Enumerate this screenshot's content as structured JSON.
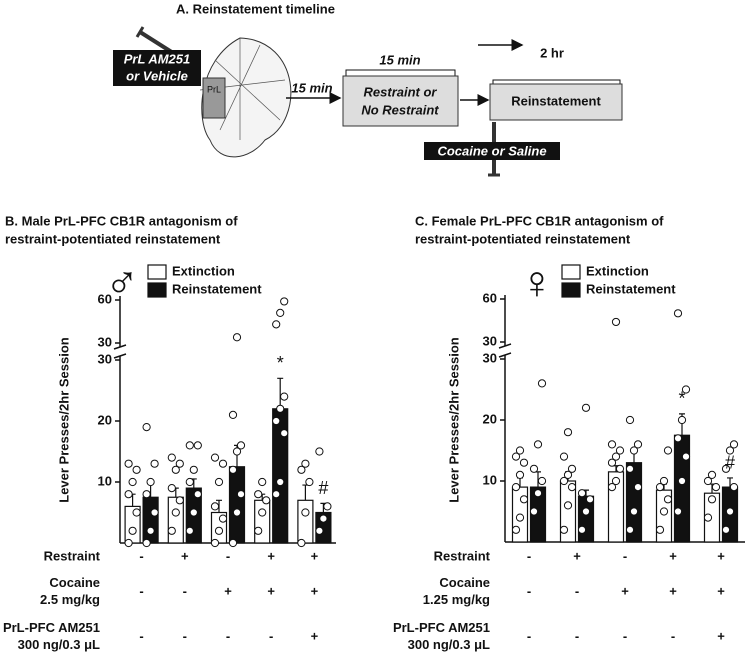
{
  "panel_a": {
    "title": "A. Reinstatement timeline",
    "drug_label": [
      "PrL AM251",
      "or Vehicle"
    ],
    "region": "PrL",
    "interval1": "15 min",
    "interval2": "15 min",
    "interval3": "2 hr",
    "stress_box": [
      "Restraint or",
      "No Restraint"
    ],
    "test_box": "Reinstatement",
    "injection": "Cocaine or Saline"
  },
  "chart_data": [
    {
      "type": "bar",
      "title": [
        "B. Male PrL-PFC CB1R antagonism of",
        "restraint-potentiated reinstatement"
      ],
      "symbol": "♂",
      "y_label": "Lever Presses/2hr Session",
      "ylim_lower": [
        0,
        30
      ],
      "ylim_upper": [
        30,
        60
      ],
      "yticks_lower": [
        10,
        20,
        30
      ],
      "yticks_upper": [
        30,
        60
      ],
      "legend": "top-left",
      "series": [
        {
          "name": "Extinction",
          "color": "#ffffff",
          "values": [
            6,
            7.5,
            5,
            7,
            7
          ],
          "errors": [
            2,
            1.5,
            2,
            1,
            2.5
          ],
          "points": [
            [
              0,
              2,
              5,
              8,
              10,
              12,
              13
            ],
            [
              2,
              5,
              7,
              9,
              12,
              13,
              14
            ],
            [
              0,
              2,
              4,
              6,
              10,
              13,
              14
            ],
            [
              2,
              5,
              7,
              8,
              10
            ],
            [
              0,
              5,
              10,
              12,
              13
            ]
          ]
        },
        {
          "name": "Reinstatement",
          "color": "#111111",
          "values": [
            7.5,
            9,
            12.5,
            22,
            5
          ],
          "errors": [
            2.5,
            1.5,
            3.5,
            5,
            1.5
          ],
          "points": [
            [
              0,
              2,
              5,
              8,
              10,
              13,
              19
            ],
            [
              2,
              5,
              8,
              10,
              12,
              16,
              16
            ],
            [
              0,
              5,
              8,
              12,
              15,
              16,
              21,
              34
            ],
            [
              8,
              10,
              18,
              20,
              22,
              24,
              43,
              51,
              59
            ],
            [
              2,
              4,
              6,
              15
            ]
          ],
          "markers": [
            null,
            null,
            null,
            "*",
            "#"
          ]
        }
      ],
      "condition_rows": [
        {
          "label": [
            "Restraint"
          ],
          "signs": [
            "-",
            "+",
            "-",
            "+",
            "+"
          ]
        },
        {
          "label": [
            "Cocaine",
            "2.5 mg/kg"
          ],
          "signs": [
            "-",
            "-",
            "+",
            "+",
            "+"
          ]
        },
        {
          "label": [
            "PrL-PFC AM251",
            "300 ng/0.3 μL"
          ],
          "signs": [
            "-",
            "-",
            "-",
            "-",
            "+"
          ]
        }
      ]
    },
    {
      "type": "bar",
      "title": [
        "C. Female PrL-PFC CB1R antagonism of",
        "restraint-potentiated reinstatement"
      ],
      "symbol": "♀",
      "y_label": "Lever Presses/2hr Session",
      "ylim_lower": [
        0,
        30
      ],
      "ylim_upper": [
        30,
        60
      ],
      "yticks_lower": [
        10,
        20,
        30
      ],
      "yticks_upper": [
        30,
        60
      ],
      "legend": "top-left",
      "series": [
        {
          "name": "Extinction",
          "color": "#ffffff",
          "values": [
            9,
            10,
            11.5,
            8.5,
            8
          ],
          "errors": [
            1.5,
            1.5,
            1,
            1,
            1.5
          ],
          "points": [
            [
              2,
              4,
              7,
              9,
              11,
              13,
              14,
              15
            ],
            [
              2,
              6,
              9,
              10,
              11,
              12,
              14,
              18
            ],
            [
              9,
              10,
              12,
              13,
              14,
              15,
              16,
              44
            ],
            [
              2,
              5,
              7,
              9,
              10,
              15
            ],
            [
              4,
              7,
              9,
              10,
              11
            ]
          ]
        },
        {
          "name": "Reinstatement",
          "color": "#111111",
          "values": [
            9,
            7.5,
            13,
            17.5,
            9
          ],
          "errors": [
            2.5,
            1,
            2,
            3.5,
            1.5
          ],
          "points": [
            [
              5,
              8,
              10,
              12,
              16,
              26
            ],
            [
              2,
              5,
              7,
              8,
              22
            ],
            [
              2,
              5,
              9,
              12,
              15,
              16,
              20
            ],
            [
              5,
              10,
              14,
              17,
              20,
              25,
              50
            ],
            [
              2,
              5,
              9,
              12,
              15,
              16
            ]
          ],
          "markers": [
            null,
            null,
            null,
            "*",
            "#"
          ]
        }
      ],
      "condition_rows": [
        {
          "label": [
            "Restraint"
          ],
          "signs": [
            "-",
            "+",
            "-",
            "+",
            "+"
          ]
        },
        {
          "label": [
            "Cocaine",
            "1.25 mg/kg"
          ],
          "signs": [
            "-",
            "-",
            "+",
            "+",
            "+"
          ]
        },
        {
          "label": [
            "PrL-PFC AM251",
            "300 ng/0.3 μL"
          ],
          "signs": [
            "-",
            "-",
            "-",
            "-",
            "+"
          ]
        }
      ]
    }
  ]
}
